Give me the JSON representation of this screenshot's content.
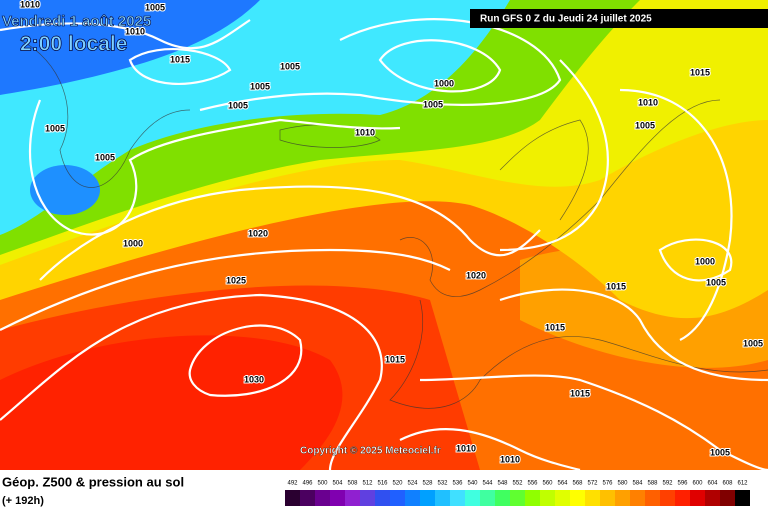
{
  "header": {
    "date": "Vendredi 1 août 2025",
    "time": "2:00 locale",
    "run": "Run GFS 0 Z du Jeudi 24 juillet 2025"
  },
  "copyright": "Copyright © 2025 Meteociel.fr",
  "footer": {
    "title": "Géop. Z500 & pression au sol",
    "lead": "(+ 192h)"
  },
  "colorbar": {
    "levels": [
      492,
      496,
      500,
      504,
      508,
      512,
      516,
      520,
      524,
      528,
      532,
      536,
      540,
      544,
      548,
      552,
      556,
      560,
      564,
      568,
      572,
      576,
      580,
      584,
      588,
      592,
      596,
      600,
      604,
      608,
      612
    ],
    "colors": [
      "#2a0030",
      "#4b0060",
      "#6a0090",
      "#8000b0",
      "#9020d0",
      "#6040e0",
      "#3050f0",
      "#2060ff",
      "#1080ff",
      "#00a0ff",
      "#20c0ff",
      "#40e0ff",
      "#40ffe0",
      "#40ffa0",
      "#40ff60",
      "#60ff30",
      "#90ff00",
      "#c0ff00",
      "#e0ff00",
      "#ffff00",
      "#ffe000",
      "#ffc000",
      "#ffa000",
      "#ff8000",
      "#ff6000",
      "#ff4000",
      "#ff2000",
      "#e00000",
      "#b00000",
      "#800000",
      "#000000"
    ]
  },
  "isobar_labels": [
    "1010",
    "1010",
    "1005",
    "1015",
    "1005",
    "1005",
    "1005",
    "1000",
    "1005",
    "1010",
    "1015",
    "1010",
    "1005",
    "1005",
    "1005",
    "1000",
    "1020",
    "1025",
    "1020",
    "1015",
    "1015",
    "1000",
    "1005",
    "1030",
    "1015",
    "1015",
    "1005",
    "1010",
    "1010",
    "1005"
  ]
}
